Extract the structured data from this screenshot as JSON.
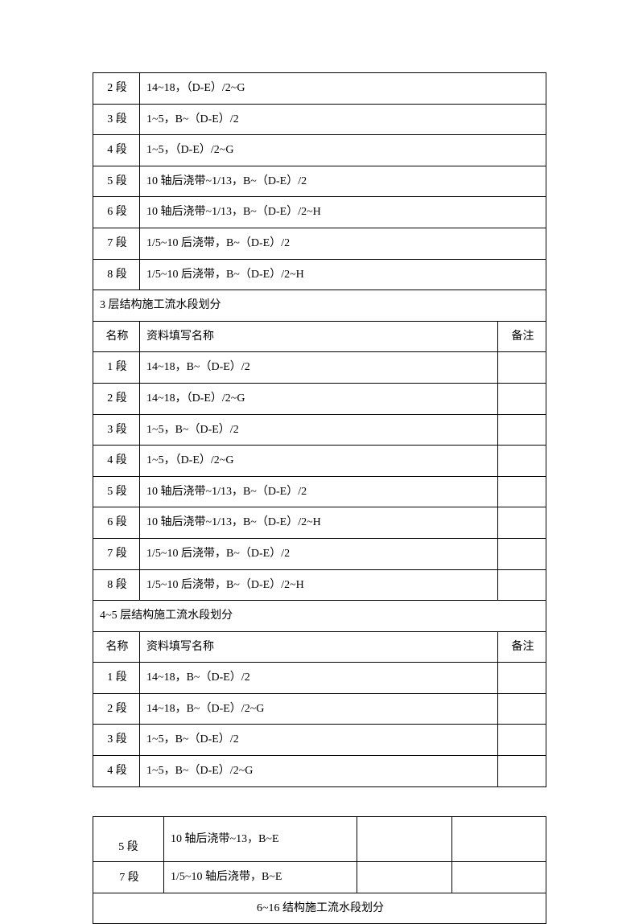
{
  "table1": {
    "topRows": [
      {
        "c1": "2 段",
        "c2": "14~18，（D-E）/2~G"
      },
      {
        "c1": "3 段",
        "c2": "1~5，B~（D-E）/2"
      },
      {
        "c1": "4 段",
        "c2": "1~5，（D-E）/2~G"
      },
      {
        "c1": "5 段",
        "c2": "10 轴后浇带~1/13，B~（D-E）/2"
      },
      {
        "c1": "6 段",
        "c2": "10 轴后浇带~1/13，B~（D-E）/2~H"
      },
      {
        "c1": "7 段",
        "c2": "1/5~10 后浇带，B~（D-E）/2"
      },
      {
        "c1": "8 段",
        "c2": "1/5~10 后浇带，B~（D-E）/2~H"
      }
    ],
    "section3Header": "3 层结构施工流水段划分",
    "nameLabel": "名称",
    "descLabel": "资料填写名称",
    "noteLabel": "备注",
    "section3Rows": [
      {
        "c1": "1 段",
        "c2": "14~18，B~（D-E）/2"
      },
      {
        "c1": "2 段",
        "c2": "14~18，（D-E）/2~G"
      },
      {
        "c1": "3 段",
        "c2": "1~5，B~（D-E）/2"
      },
      {
        "c1": "4 段",
        "c2": "1~5，（D-E）/2~G"
      },
      {
        "c1": "5 段",
        "c2": "10 轴后浇带~1/13，B~（D-E）/2"
      },
      {
        "c1": "6 段",
        "c2": "10 轴后浇带~1/13，B~（D-E）/2~H"
      },
      {
        "c1": "7 段",
        "c2": "1/5~10 后浇带，B~（D-E）/2"
      },
      {
        "c1": "8 段",
        "c2": "1/5~10 后浇带，B~（D-E）/2~H"
      }
    ],
    "section45Header": "4~5 层结构施工流水段划分",
    "section45Rows": [
      {
        "c1": "1 段",
        "c2": "14~18，B~（D-E）/2"
      },
      {
        "c1": "2 段",
        "c2": "14~18，B~（D-E）/2~G"
      },
      {
        "c1": "3 段",
        "c2": "1~5，B~（D-E）/2"
      },
      {
        "c1": "4 段",
        "c2": "1~5，B~（D-E）/2~G"
      }
    ]
  },
  "table2": {
    "rows": [
      {
        "c1": "5 段",
        "c2": "10 轴后浇带~13，B~E"
      },
      {
        "c1": "7 段",
        "c2": "1/5~10 轴后浇带，B~E"
      }
    ],
    "footer": "6~16 结构施工流水段划分"
  },
  "styling": {
    "border_color": "#000000",
    "text_color": "#000000",
    "background_color": "#ffffff",
    "font_family": "SimSun",
    "font_size_pt": 10.5
  }
}
